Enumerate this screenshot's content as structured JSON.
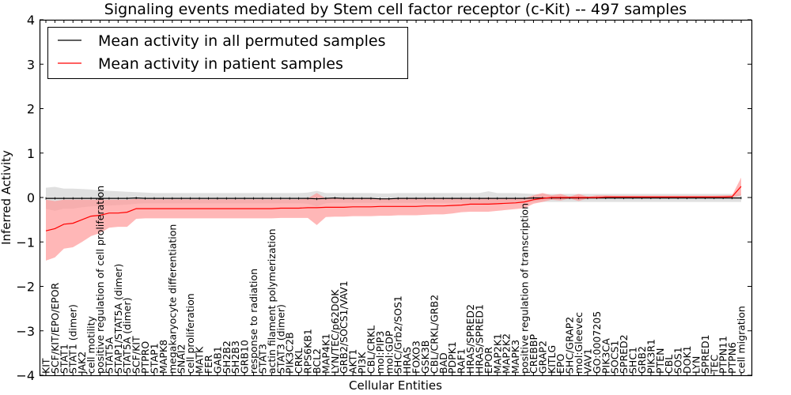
{
  "chart_data": {
    "type": "line",
    "title": "Signaling events mediated by Stem cell factor receptor (c-Kit) -- 497 samples",
    "xlabel": "Cellular Entities",
    "ylabel": "Inferred Activity",
    "ylim": [
      -4,
      4
    ],
    "yticks": [
      -4,
      -3,
      -2,
      -1,
      0,
      1,
      2,
      3,
      4
    ],
    "ytick_labels": [
      "−4",
      "−3",
      "−2",
      "−1",
      "0",
      "1",
      "2",
      "3",
      "4"
    ],
    "grid": false,
    "legend_position": "top-left",
    "categories": [
      "KIT",
      "SCF/KIT/EPO/EPOR",
      "STAT1",
      "STAT1 (dimer)",
      "JAK2",
      "cell motility",
      "positive regulation of cell proliferation",
      "STAT5A",
      "STAP1/STAT5A (dimer)",
      "STAT5A (dimer)",
      "SCF/KIT",
      "PTPRO",
      "STAP1",
      "MAPK8",
      "megakaryocyte differentiation",
      "SNAI2",
      "cell proliferation",
      "MATK",
      "FER",
      "GAB1",
      "SH2B2",
      "SH2B3",
      "GRB10",
      "response to radiation",
      "STAT3",
      "actin filament polymerization",
      "STAT3 (dimer)",
      "PIK3C2B",
      "CRKL",
      "RPS6KB1",
      "BCL2",
      "MAP4K1",
      "LYN/TEC/p62DOK",
      "GRB2/SOCS1/VAV1",
      "AKT1",
      "PI3K",
      "CBL/CRKL",
      "mol:PIP3",
      "mol:GDP",
      "SHC/Grb2/SOS1",
      "HRAS",
      "FOXO3",
      "GSK3B",
      "CBL/CRKL/GRB2",
      "BAD",
      "PDPK1",
      "RAF1",
      "HRAS/SPRED2",
      "HRAS/SPRED1",
      "EPOR",
      "MAP2K1",
      "MAP2K2",
      "MAPK3",
      "positive regulation of transcription",
      "CREBBP",
      "GRAP2",
      "KITLG",
      "EPO",
      "SHC/GRAP2",
      "mol:Gleevec",
      "VAV1",
      "GO:0007205",
      "PIK3CA",
      "SOCS1",
      "SPRED2",
      "SHC1",
      "GRB2",
      "PIK3R1",
      "PTEN",
      "CBL",
      "SOS1",
      "DOK1",
      "LYN",
      "SPRED1",
      "TEC",
      "PTPN11",
      "PTPN6",
      "cell migration"
    ],
    "series": [
      {
        "name": "Mean activity in all permuted samples",
        "color": "#000000",
        "band_color": "#cccccc",
        "values": [
          -0.02,
          -0.02,
          -0.02,
          -0.02,
          -0.02,
          -0.02,
          -0.02,
          -0.02,
          -0.02,
          -0.02,
          -0.01,
          -0.02,
          -0.02,
          -0.02,
          -0.02,
          -0.02,
          -0.02,
          -0.02,
          -0.02,
          -0.02,
          -0.02,
          -0.02,
          -0.02,
          -0.02,
          -0.02,
          -0.02,
          -0.02,
          -0.02,
          -0.02,
          -0.02,
          -0.03,
          -0.02,
          -0.01,
          -0.02,
          -0.02,
          -0.02,
          -0.02,
          -0.03,
          -0.03,
          -0.02,
          -0.02,
          -0.02,
          -0.02,
          -0.02,
          -0.02,
          -0.02,
          -0.02,
          -0.02,
          -0.02,
          -0.02,
          -0.02,
          -0.02,
          -0.02,
          -0.02,
          -0.01,
          -0.01,
          -0.01,
          -0.01,
          -0.01,
          -0.01,
          -0.01,
          -0.01,
          -0.01,
          -0.01,
          -0.01,
          -0.01,
          -0.01,
          -0.01,
          -0.01,
          -0.01,
          -0.01,
          -0.01,
          -0.01,
          -0.01,
          -0.01,
          -0.01,
          -0.01,
          -0.01
        ],
        "upper": [
          0.22,
          0.24,
          0.2,
          0.2,
          0.19,
          0.18,
          0.16,
          0.15,
          0.14,
          0.13,
          0.12,
          0.11,
          0.1,
          0.1,
          0.1,
          0.1,
          0.1,
          0.1,
          0.1,
          0.1,
          0.1,
          0.1,
          0.1,
          0.1,
          0.1,
          0.1,
          0.1,
          0.1,
          0.1,
          0.11,
          0.15,
          0.1,
          0.1,
          0.1,
          0.1,
          0.1,
          0.1,
          0.09,
          0.09,
          0.1,
          0.1,
          0.1,
          0.1,
          0.1,
          0.1,
          0.1,
          0.1,
          0.1,
          0.1,
          0.14,
          0.1,
          0.1,
          0.1,
          0.09,
          0.08,
          0.08,
          0.08,
          0.08,
          0.08,
          0.08,
          0.08,
          0.08,
          0.08,
          0.08,
          0.08,
          0.08,
          0.08,
          0.08,
          0.08,
          0.08,
          0.08,
          0.08,
          0.08,
          0.08,
          0.08,
          0.08,
          0.08,
          0.08
        ],
        "lower": [
          -0.25,
          -0.3,
          -0.25,
          -0.25,
          -0.22,
          -0.2,
          -0.19,
          -0.18,
          -0.17,
          -0.16,
          -0.14,
          -0.13,
          -0.13,
          -0.13,
          -0.13,
          -0.13,
          -0.13,
          -0.13,
          -0.13,
          -0.13,
          -0.13,
          -0.13,
          -0.13,
          -0.13,
          -0.13,
          -0.13,
          -0.13,
          -0.13,
          -0.13,
          -0.14,
          -0.2,
          -0.13,
          -0.12,
          -0.12,
          -0.12,
          -0.12,
          -0.12,
          -0.12,
          -0.12,
          -0.12,
          -0.12,
          -0.12,
          -0.12,
          -0.12,
          -0.12,
          -0.12,
          -0.12,
          -0.12,
          -0.12,
          -0.16,
          -0.12,
          -0.12,
          -0.12,
          -0.11,
          -0.1,
          -0.1,
          -0.1,
          -0.1,
          -0.1,
          -0.1,
          -0.1,
          -0.1,
          -0.1,
          -0.1,
          -0.1,
          -0.1,
          -0.1,
          -0.1,
          -0.1,
          -0.1,
          -0.1,
          -0.1,
          -0.1,
          -0.1,
          -0.1,
          -0.1,
          -0.1,
          -0.1
        ]
      },
      {
        "name": "Mean activity in patient samples",
        "color": "#ff0000",
        "band_color": "#ff9999",
        "values": [
          -0.75,
          -0.7,
          -0.6,
          -0.58,
          -0.5,
          -0.42,
          -0.4,
          -0.35,
          -0.35,
          -0.33,
          -0.25,
          -0.25,
          -0.25,
          -0.25,
          -0.25,
          -0.25,
          -0.25,
          -0.25,
          -0.25,
          -0.25,
          -0.25,
          -0.25,
          -0.25,
          -0.25,
          -0.25,
          -0.25,
          -0.24,
          -0.24,
          -0.24,
          -0.23,
          -0.23,
          -0.22,
          -0.22,
          -0.22,
          -0.21,
          -0.21,
          -0.21,
          -0.2,
          -0.2,
          -0.2,
          -0.2,
          -0.2,
          -0.19,
          -0.19,
          -0.19,
          -0.18,
          -0.17,
          -0.15,
          -0.15,
          -0.15,
          -0.14,
          -0.13,
          -0.12,
          -0.1,
          -0.05,
          -0.02,
          0.0,
          0.0,
          0.0,
          0.0,
          0.0,
          0.0,
          0.01,
          0.01,
          0.01,
          0.01,
          0.01,
          0.01,
          0.01,
          0.01,
          0.01,
          0.01,
          0.01,
          0.01,
          0.01,
          0.01,
          0.02,
          0.25
        ],
        "upper": [
          -0.05,
          -0.08,
          -0.05,
          -0.05,
          -0.05,
          -0.05,
          -0.05,
          -0.05,
          -0.05,
          -0.05,
          -0.03,
          -0.04,
          -0.04,
          -0.04,
          -0.04,
          -0.04,
          -0.04,
          -0.04,
          -0.04,
          -0.04,
          -0.04,
          -0.04,
          -0.04,
          -0.04,
          -0.04,
          -0.04,
          -0.04,
          -0.04,
          -0.04,
          -0.02,
          0.1,
          -0.02,
          -0.02,
          -0.02,
          -0.02,
          -0.02,
          -0.02,
          -0.02,
          -0.02,
          -0.02,
          -0.02,
          -0.02,
          -0.02,
          -0.02,
          -0.02,
          -0.02,
          -0.02,
          -0.02,
          -0.02,
          0.0,
          -0.02,
          -0.02,
          -0.02,
          -0.02,
          0.05,
          0.1,
          0.05,
          0.08,
          0.02,
          0.08,
          0.02,
          0.05,
          0.05,
          0.04,
          0.04,
          0.04,
          0.04,
          0.04,
          0.04,
          0.04,
          0.04,
          0.04,
          0.04,
          0.04,
          0.04,
          0.05,
          0.05,
          0.45
        ],
        "lower": [
          -1.42,
          -1.35,
          -1.15,
          -1.12,
          -1.0,
          -0.87,
          -0.8,
          -0.68,
          -0.66,
          -0.66,
          -0.48,
          -0.47,
          -0.47,
          -0.47,
          -0.47,
          -0.47,
          -0.47,
          -0.47,
          -0.47,
          -0.47,
          -0.47,
          -0.47,
          -0.47,
          -0.47,
          -0.47,
          -0.47,
          -0.46,
          -0.46,
          -0.46,
          -0.46,
          -0.62,
          -0.44,
          -0.43,
          -0.43,
          -0.42,
          -0.42,
          -0.42,
          -0.41,
          -0.41,
          -0.4,
          -0.4,
          -0.4,
          -0.39,
          -0.38,
          -0.38,
          -0.36,
          -0.33,
          -0.32,
          -0.32,
          -0.32,
          -0.3,
          -0.28,
          -0.26,
          -0.24,
          -0.14,
          -0.1,
          -0.05,
          -0.07,
          -0.02,
          -0.08,
          -0.02,
          -0.02,
          -0.02,
          -0.02,
          -0.02,
          -0.02,
          -0.02,
          -0.02,
          -0.02,
          -0.02,
          -0.02,
          -0.02,
          -0.02,
          -0.02,
          -0.02,
          -0.02,
          0.0,
          0.05
        ]
      }
    ]
  }
}
